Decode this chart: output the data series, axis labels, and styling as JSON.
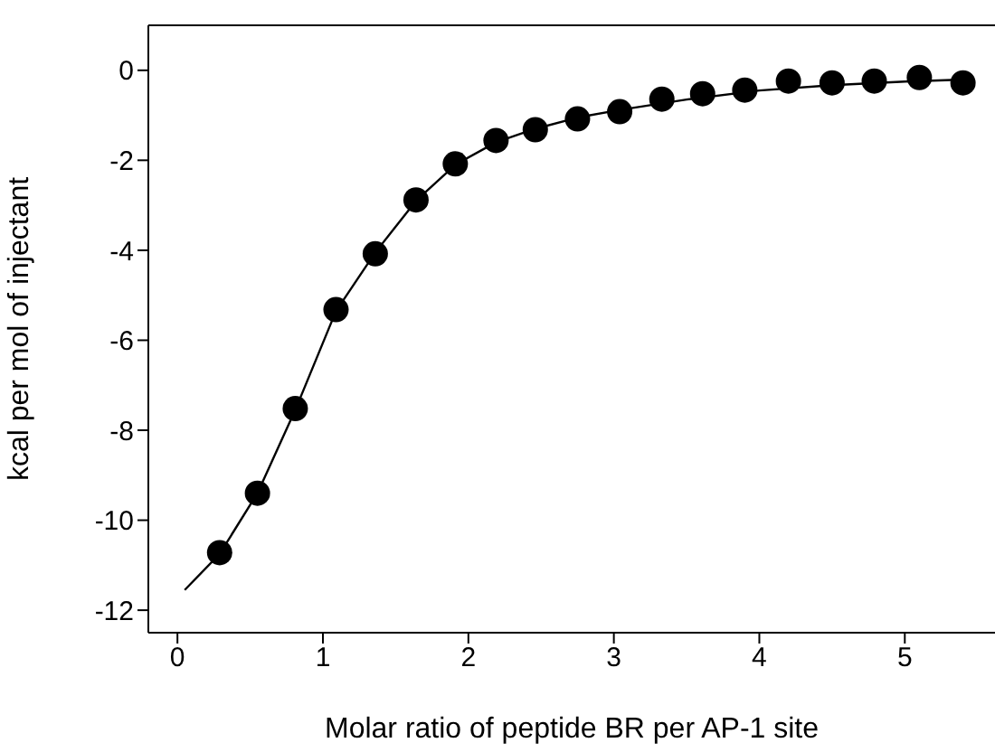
{
  "chart_data": {
    "type": "scatter",
    "xlabel": "Molar ratio of peptide BR per AP-1 site",
    "ylabel": "kcal per mol of injectant",
    "xlim": [
      -0.2,
      5.62
    ],
    "xticks": [
      0,
      1,
      2,
      3,
      4,
      5
    ],
    "ylim": [
      -12.5,
      1
    ],
    "yticks": [
      -12,
      -10,
      -8,
      -6,
      -4,
      -2,
      0
    ],
    "grid": false,
    "legend": false,
    "marker": "circle",
    "series": [
      {
        "color": "#000000",
        "x": [
          0.29,
          0.55,
          0.81,
          1.09,
          1.36,
          1.64,
          1.91,
          2.19,
          2.46,
          2.75,
          3.04,
          3.33,
          3.61,
          3.9,
          4.2,
          4.5,
          4.79,
          5.1,
          5.4
        ],
        "values": [
          -10.72,
          -9.4,
          -7.52,
          -5.32,
          -4.08,
          -2.88,
          -2.08,
          -1.56,
          -1.32,
          -1.08,
          -0.92,
          -0.64,
          -0.52,
          -0.44,
          -0.24,
          -0.28,
          -0.24,
          -0.16,
          -0.28
        ]
      },
      {
        "type": "line",
        "color": "#000000",
        "marker": "none",
        "line_style": "solid",
        "x": [
          0.05,
          0.29,
          0.55,
          0.81,
          1.09,
          1.36,
          1.64,
          1.91,
          2.19,
          2.46,
          2.75,
          3.04,
          3.5,
          4.0,
          4.5,
          5.0,
          5.45
        ],
        "values": [
          -11.55,
          -10.75,
          -9.4,
          -7.55,
          -5.35,
          -4.05,
          -2.9,
          -2.1,
          -1.6,
          -1.3,
          -1.05,
          -0.88,
          -0.65,
          -0.45,
          -0.33,
          -0.25,
          -0.2
        ]
      }
    ]
  }
}
